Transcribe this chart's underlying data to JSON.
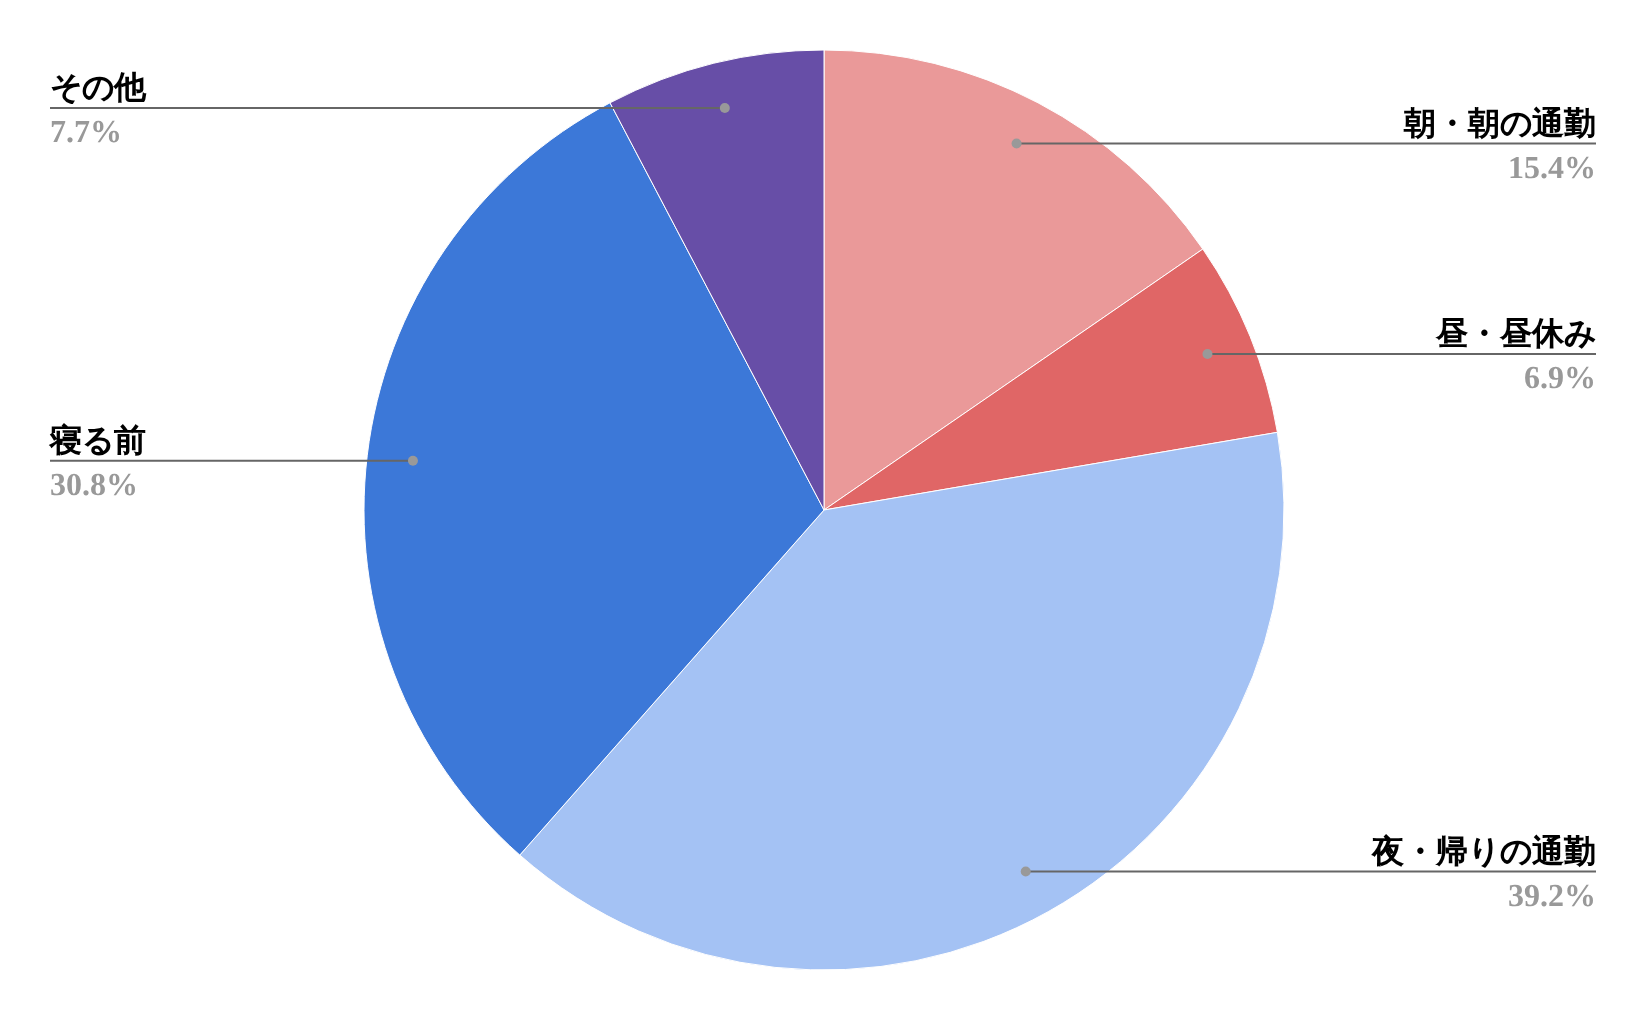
{
  "chart_data": {
    "type": "pie",
    "categories": [
      "朝・朝の通勤",
      "昼・昼休み",
      "夜・帰りの通勤",
      "寝る前",
      "その他"
    ],
    "values": [
      15.4,
      6.9,
      39.2,
      30.8,
      7.7
    ],
    "value_labels": [
      "15.4%",
      "6.9%",
      "39.2%",
      "30.8%",
      "7.7%"
    ],
    "colors": [
      "#ea9999",
      "#e06666",
      "#a4c2f4",
      "#3c78d8",
      "#674ea7"
    ],
    "legend": false
  }
}
